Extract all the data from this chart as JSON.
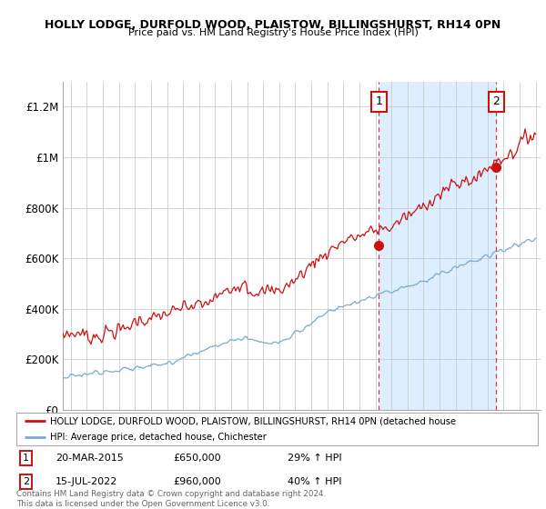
{
  "title1": "HOLLY LODGE, DURFOLD WOOD, PLAISTOW, BILLINGSHURST, RH14 0PN",
  "title2": "Price paid vs. HM Land Registry's House Price Index (HPI)",
  "ylabel_ticks": [
    "£0",
    "£200K",
    "£400K",
    "£600K",
    "£800K",
    "£1M",
    "£1.2M"
  ],
  "ytick_vals": [
    0,
    200000,
    400000,
    600000,
    800000,
    1000000,
    1200000
  ],
  "ylim": [
    0,
    1300000
  ],
  "xlim_start": 1995.5,
  "xlim_end": 2025.3,
  "sale1_year": 2015.22,
  "sale1_price": 650000,
  "sale2_year": 2022.54,
  "sale2_price": 960000,
  "red_color": "#cc1111",
  "blue_color": "#7aaad0",
  "shade_color": "#ddeeff",
  "grid_color": "#cccccc",
  "legend_label_red": "HOLLY LODGE, DURFOLD WOOD, PLAISTOW, BILLINGSHURST, RH14 0PN (detached house",
  "legend_label_blue": "HPI: Average price, detached house, Chichester",
  "annotation1_date": "20-MAR-2015",
  "annotation1_price": "£650,000",
  "annotation1_hpi": "29% ↑ HPI",
  "annotation2_date": "15-JUL-2022",
  "annotation2_price": "£960,000",
  "annotation2_hpi": "40% ↑ HPI",
  "footer": "Contains HM Land Registry data © Crown copyright and database right 2024.\nThis data is licensed under the Open Government Licence v3.0.",
  "background_color": "#ffffff"
}
